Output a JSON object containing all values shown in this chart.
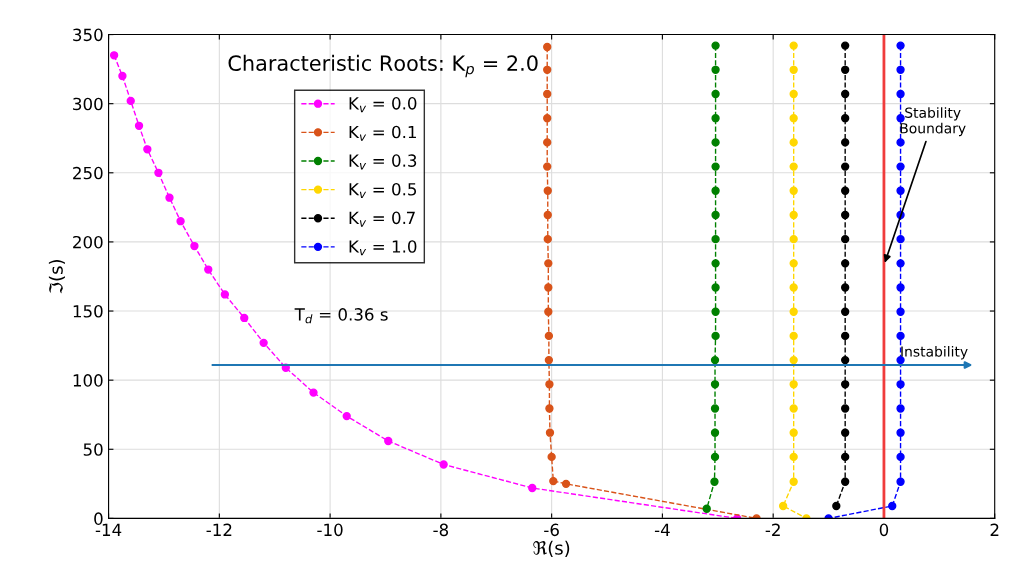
{
  "chart_data": {
    "type": "line",
    "title": "Characteristic Roots: K$_{p}$ = 2.0",
    "xlabel": "ℜ(s)",
    "ylabel": "ℑ(s)",
    "xlim": [
      -14,
      2
    ],
    "xticks": [
      -14,
      -12,
      -10,
      -8,
      -6,
      -4,
      -2,
      0,
      2
    ],
    "ylim": [
      0,
      350
    ],
    "yticks": [
      0,
      50,
      100,
      150,
      200,
      250,
      300,
      350
    ],
    "grid": true,
    "legend": "top left",
    "marker": "circle",
    "line_style": "dashed",
    "series": [
      {
        "name": "K$_{v}$ = 0.0",
        "color": "#ff00ff",
        "x": [
          -13.9,
          -13.75,
          -13.6,
          -13.45,
          -13.3,
          -13.1,
          -12.9,
          -12.7,
          -12.45,
          -12.2,
          -11.9,
          -11.55,
          -11.2,
          -10.8,
          -10.3,
          -9.7,
          -8.95,
          -7.95,
          -6.35,
          -2.65
        ],
        "values": [
          335,
          320,
          302,
          284,
          267,
          250,
          232,
          215,
          197,
          180,
          162,
          145,
          127,
          109,
          91,
          74,
          56,
          39,
          22,
          0
        ]
      },
      {
        "name": "K$_{v}$ = 0.1",
        "color": "#d95319",
        "x": [
          -6.08,
          -6.08,
          -6.08,
          -6.08,
          -6.08,
          -6.08,
          -6.07,
          -6.07,
          -6.07,
          -6.06,
          -6.06,
          -6.06,
          -6.05,
          -6.05,
          -6.04,
          -6.04,
          -6.03,
          -6.0,
          -5.97,
          -5.74,
          -2.3
        ],
        "values": [
          341,
          324.5,
          307,
          289.5,
          272,
          254.5,
          237,
          219.5,
          202,
          184.5,
          167,
          149.5,
          132,
          114.5,
          97,
          79.5,
          62,
          44.5,
          27,
          25,
          0
        ]
      },
      {
        "name": "K$_{v}$ = 0.3",
        "color": "#008000",
        "x": [
          -3.04,
          -3.04,
          -3.04,
          -3.04,
          -3.04,
          -3.04,
          -3.04,
          -3.04,
          -3.04,
          -3.04,
          -3.04,
          -3.04,
          -3.04,
          -3.05,
          -3.05,
          -3.05,
          -3.05,
          -3.05,
          -3.06,
          -3.2
        ],
        "values": [
          342,
          324.5,
          307,
          289.5,
          272,
          254.5,
          237,
          219.5,
          202,
          184.5,
          167,
          149.5,
          132,
          114.5,
          97,
          79.5,
          62,
          44.5,
          26.5,
          7
        ]
      },
      {
        "name": "K$_{v}$ = 0.5",
        "color": "#ffd700",
        "x": [
          -1.63,
          -1.63,
          -1.63,
          -1.63,
          -1.63,
          -1.63,
          -1.63,
          -1.63,
          -1.63,
          -1.63,
          -1.63,
          -1.63,
          -1.63,
          -1.63,
          -1.63,
          -1.63,
          -1.63,
          -1.63,
          -1.63,
          -1.82,
          -1.4
        ],
        "values": [
          342,
          324.5,
          307,
          289.5,
          272,
          254.5,
          237,
          219.5,
          202,
          184.5,
          167,
          149.5,
          132,
          114.5,
          97,
          79.5,
          62,
          44.5,
          26.5,
          9,
          0
        ]
      },
      {
        "name": "K$_{v}$ = 0.7",
        "color": "#000000",
        "x": [
          -0.7,
          -0.7,
          -0.7,
          -0.7,
          -0.7,
          -0.7,
          -0.7,
          -0.7,
          -0.7,
          -0.7,
          -0.7,
          -0.7,
          -0.7,
          -0.7,
          -0.7,
          -0.7,
          -0.7,
          -0.7,
          -0.7,
          -0.86
        ],
        "values": [
          342,
          324.5,
          307,
          289.5,
          272,
          254.5,
          237,
          219.5,
          202,
          184.5,
          167,
          149.5,
          132,
          114.5,
          97,
          79.5,
          62,
          44.5,
          26.5,
          9
        ]
      },
      {
        "name": "K$_{v}$ = 1.0",
        "color": "#0000ff",
        "x": [
          0.3,
          0.3,
          0.3,
          0.3,
          0.3,
          0.3,
          0.3,
          0.3,
          0.3,
          0.3,
          0.3,
          0.3,
          0.3,
          0.3,
          0.3,
          0.3,
          0.3,
          0.3,
          0.3,
          0.15,
          -1.0
        ],
        "values": [
          342,
          324.5,
          307,
          289.5,
          272,
          254.5,
          237,
          219.5,
          202,
          184.5,
          167,
          149.5,
          132,
          114.5,
          97,
          79.5,
          62,
          44.5,
          26.5,
          9,
          0
        ]
      }
    ],
    "ref_lines": [
      {
        "axis": "x",
        "value": 0,
        "color": "#f03c3c",
        "line_style": "solid"
      },
      {
        "axis": "y",
        "value": 111,
        "label": "Instability",
        "color": "#1f77b4",
        "line_style": "solid"
      }
    ],
    "annotations": [
      "T$_{d}$ = 0.36 s",
      {
        "text": "Stability\nBoundary",
        "x": 0,
        "y": 183
      }
    ]
  }
}
